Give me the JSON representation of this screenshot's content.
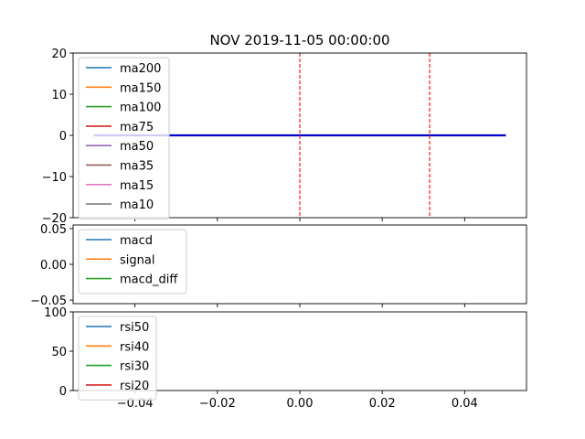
{
  "chart_data": [
    {
      "type": "line",
      "title": "NOV 2019-11-05 00:00:00",
      "xlim": [
        -0.055,
        0.055
      ],
      "ylim": [
        -20,
        20
      ],
      "yticks": [
        20,
        10,
        0,
        -10,
        -20
      ],
      "ytick_labels": [
        "20",
        "10",
        "0",
        "−10",
        "−20"
      ],
      "xticks": [
        -0.04,
        -0.02,
        0.0,
        0.02,
        0.04
      ],
      "legend_position": "upper-left",
      "series": [
        {
          "name": "ma200",
          "color": "#1f77b4"
        },
        {
          "name": "ma150",
          "color": "#ff7f0e"
        },
        {
          "name": "ma100",
          "color": "#2ca02c"
        },
        {
          "name": "ma75",
          "color": "#d62728"
        },
        {
          "name": "ma50",
          "color": "#9467bd"
        },
        {
          "name": "ma35",
          "color": "#8c564b"
        },
        {
          "name": "ma15",
          "color": "#e377c2"
        },
        {
          "name": "ma10",
          "color": "#7f7f7f"
        }
      ],
      "price_line": {
        "x": [
          -0.05,
          0.05
        ],
        "y": [
          0,
          0
        ],
        "color": "#0000cc"
      },
      "vlines": [
        {
          "x": 0.0,
          "color": "#ff0000",
          "style": "dashed"
        },
        {
          "x": 0.0315,
          "color": "#ff0000",
          "style": "dashed"
        }
      ]
    },
    {
      "type": "line",
      "xlim": [
        -0.055,
        0.055
      ],
      "ylim": [
        -0.055,
        0.055
      ],
      "yticks": [
        0.05,
        0.0,
        -0.05
      ],
      "ytick_labels": [
        "0.05",
        "0.00",
        "−0.05"
      ],
      "xticks": [
        -0.04,
        -0.02,
        0.0,
        0.02,
        0.04
      ],
      "legend_position": "upper-left",
      "series": [
        {
          "name": "macd",
          "color": "#1f77b4"
        },
        {
          "name": "signal",
          "color": "#ff7f0e"
        },
        {
          "name": "macd_diff",
          "color": "#2ca02c"
        }
      ]
    },
    {
      "type": "line",
      "xlim": [
        -0.055,
        0.055
      ],
      "ylim": [
        0,
        100
      ],
      "yticks": [
        100,
        50,
        0
      ],
      "ytick_labels": [
        "100",
        "50",
        "0"
      ],
      "xticks": [
        -0.04,
        -0.02,
        0.0,
        0.02,
        0.04
      ],
      "xtick_labels": [
        "−0.04",
        "−0.02",
        "0.00",
        "0.02",
        "0.04"
      ],
      "legend_position": "upper-left",
      "series": [
        {
          "name": "rsi50",
          "color": "#1f77b4"
        },
        {
          "name": "rsi40",
          "color": "#ff7f0e"
        },
        {
          "name": "rsi30",
          "color": "#2ca02c"
        },
        {
          "name": "rsi20",
          "color": "#d62728"
        }
      ]
    }
  ]
}
